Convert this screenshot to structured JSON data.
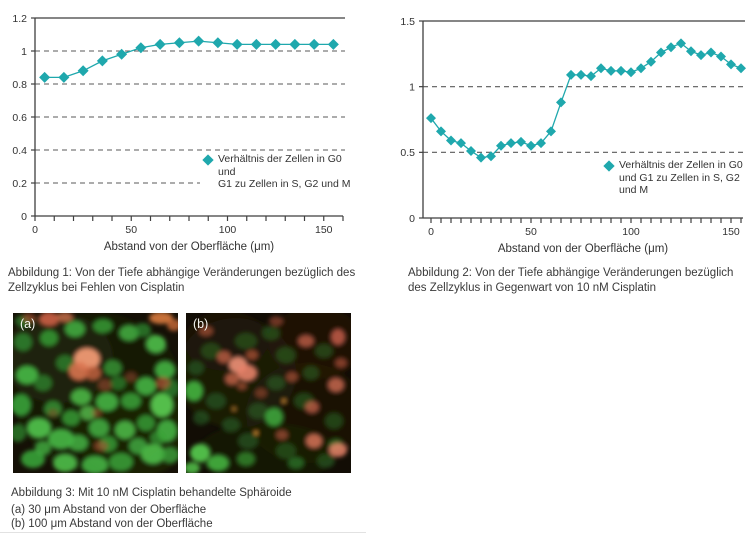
{
  "chart_data": [
    {
      "type": "scatter",
      "title": "",
      "xlabel": "Abstand von der Oberfläche (μm)",
      "ylabel": "",
      "legend": "Verhältnis der Zellen in G0 und G1 zu Zellen in S, G2 und M",
      "legend_lines": [
        "Verhältnis der Zellen in G0 und",
        "G1 zu Zellen in S, G2 und M"
      ],
      "marker": "diamond",
      "marker_color": "#1fa8ad",
      "grid": "horizontal-dashed",
      "x": [
        5,
        15,
        25,
        35,
        45,
        55,
        65,
        75,
        85,
        95,
        105,
        115,
        125,
        135,
        145,
        155
      ],
      "y": [
        0.84,
        0.84,
        0.88,
        0.94,
        0.98,
        1.02,
        1.04,
        1.05,
        1.06,
        1.05,
        1.04,
        1.04,
        1.04,
        1.04,
        1.04,
        1.04
      ],
      "xlim": [
        0,
        160
      ],
      "ylim": [
        0,
        1.2
      ],
      "xticks": [
        0,
        50,
        100,
        150
      ],
      "x_minor_step": 10,
      "yticks": [
        0,
        0.2,
        0.4,
        0.6,
        0.8,
        1,
        1.2
      ]
    },
    {
      "type": "scatter",
      "title": "",
      "xlabel": "Abstand von der Oberfläche (μm)",
      "ylabel": "",
      "legend": "Verhältnis der Zellen in G0 und G1 zu Zellen in S, G2 und M",
      "legend_lines": [
        "Verhältnis der Zellen in G0",
        "und G1 zu Zellen in S, G2",
        "und M"
      ],
      "marker": "diamond",
      "marker_color": "#1fa8ad",
      "grid": "horizontal-dashed",
      "x": [
        0,
        5,
        10,
        15,
        20,
        25,
        30,
        35,
        40,
        45,
        50,
        55,
        60,
        65,
        70,
        75,
        80,
        85,
        90,
        95,
        100,
        105,
        110,
        115,
        120,
        125,
        130,
        135,
        140,
        145,
        150,
        155
      ],
      "y": [
        0.76,
        0.66,
        0.59,
        0.57,
        0.51,
        0.46,
        0.47,
        0.55,
        0.57,
        0.58,
        0.55,
        0.57,
        0.66,
        0.88,
        1.09,
        1.09,
        1.08,
        1.14,
        1.12,
        1.12,
        1.11,
        1.14,
        1.19,
        1.26,
        1.3,
        1.33,
        1.27,
        1.24,
        1.26,
        1.23,
        1.17,
        1.14
      ],
      "xlim": [
        -4,
        156
      ],
      "ylim": [
        0,
        1.5
      ],
      "xticks": [
        0,
        50,
        100,
        150
      ],
      "x_minor_step": 5,
      "yticks": [
        0,
        0.5,
        1,
        1.5
      ]
    }
  ],
  "figures": {
    "abb1": {
      "caption": "Abbildung 1: Von der Tiefe abhängige Veränderungen bezüglich des Zellzyklus bei Fehlen von Cisplatin"
    },
    "abb2": {
      "caption": "Abbildung 2: Von der Tiefe abhängige Veränderungen bezüglich des Zellzyklus in Gegenwart von 10 nM Cisplatin"
    },
    "abb3": {
      "caption": "Abbildung 3: Mit 10 nM Cisplatin behandelte Sphäroide",
      "item_a": "(a) 30 μm Abstand von der Oberfläche",
      "item_b": "(b) 100 μm Abstand von der Oberfläche",
      "panel_a_label": "(a)",
      "panel_b_label": "(b)"
    }
  },
  "colors": {
    "accent_teal": "#1fa8ad",
    "axis": "#3f3f3f",
    "grid": "#5a5a5a",
    "text": "#3a3a3a",
    "micro_green": "#44b243",
    "micro_red": "#e2795c"
  }
}
